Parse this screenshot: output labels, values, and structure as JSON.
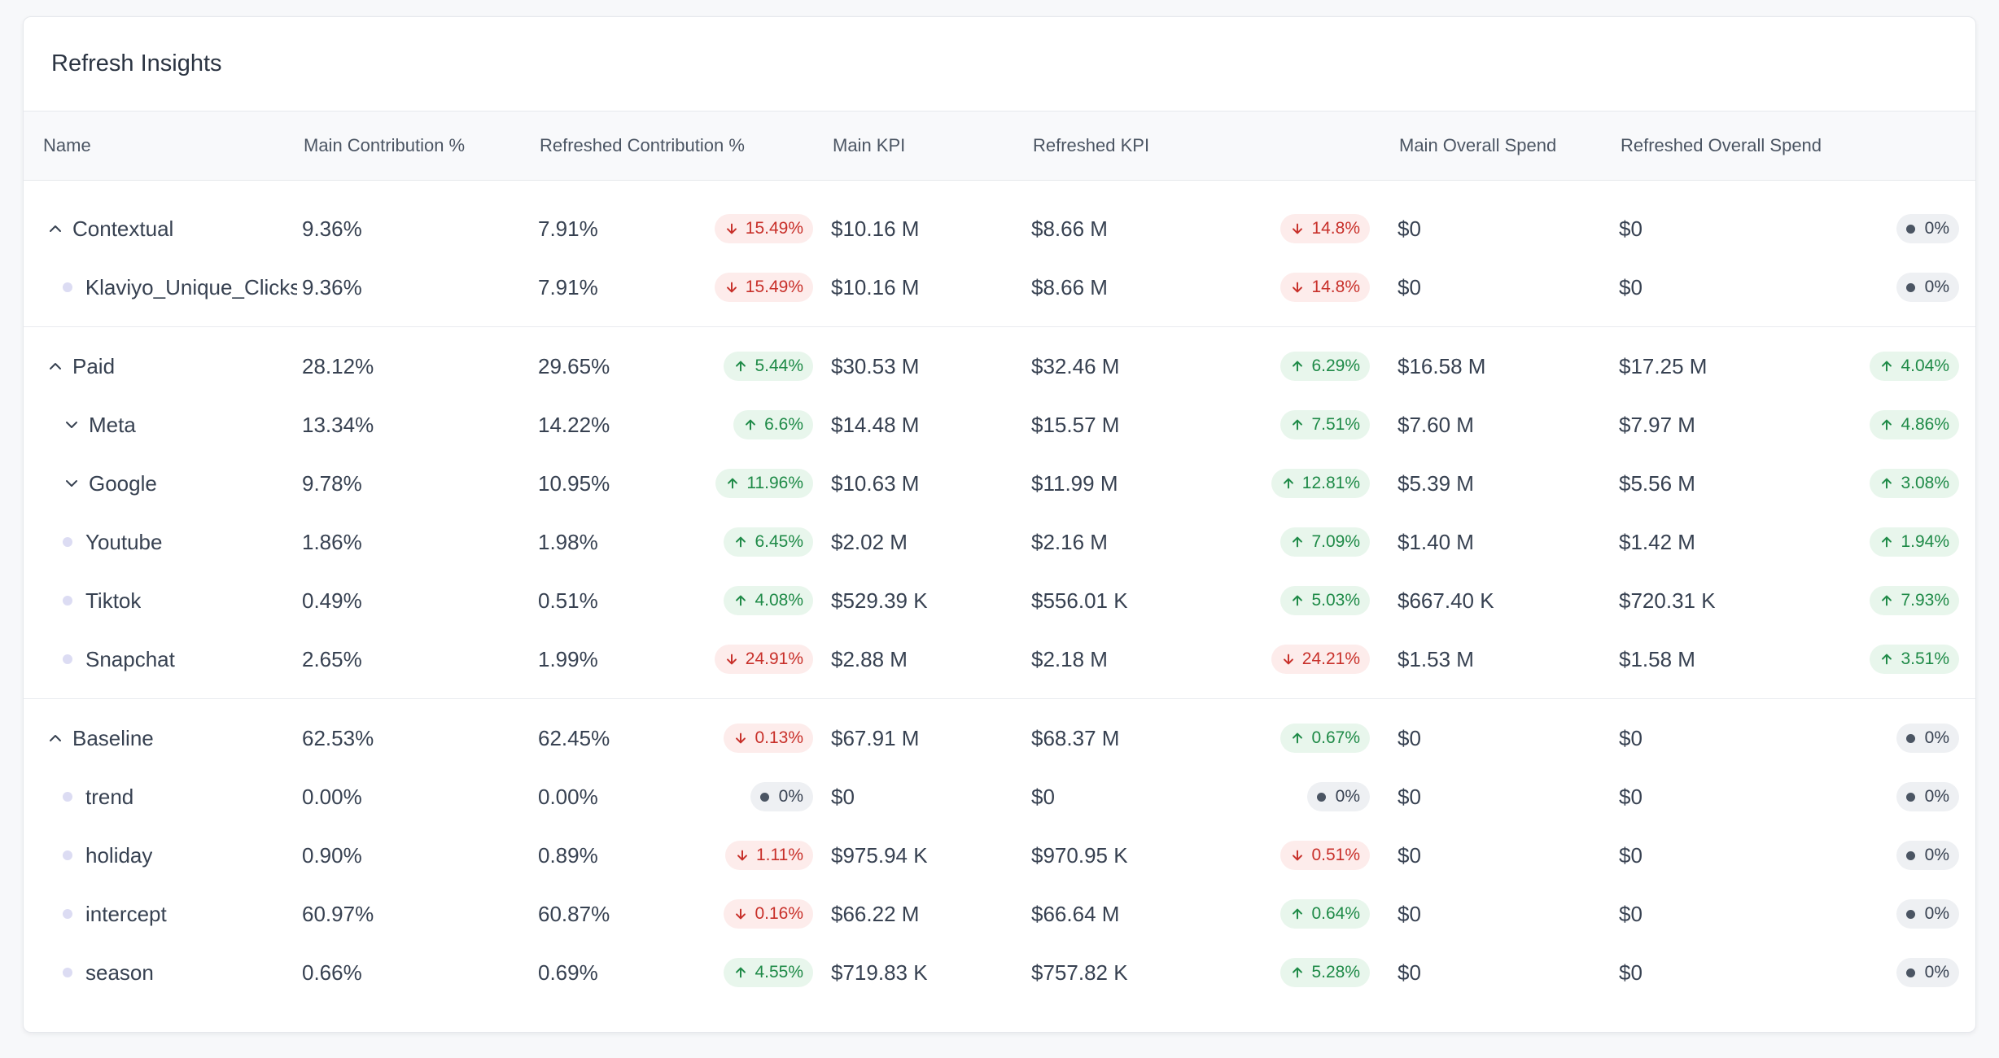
{
  "title": "Refresh Insights",
  "columns": {
    "name": "Name",
    "main_contribution": "Main Contribution %",
    "refreshed_contribution": "Refreshed Contribution %",
    "main_kpi": "Main KPI",
    "refreshed_kpi": "Refreshed KPI",
    "main_spend": "Main Overall Spend",
    "refreshed_spend": "Refreshed Overall Spend"
  },
  "rows": [
    {
      "name": "Contextual",
      "main_c": "9.36%",
      "ref_c": "7.91%",
      "c_delta": "15.49%",
      "c_dir": "down",
      "main_kpi": "$10.16 M",
      "ref_kpi": "$8.66 M",
      "kpi_delta": "14.8%",
      "kpi_dir": "down",
      "main_spend": "$0",
      "ref_spend": "$0",
      "spend_delta": "0%",
      "spend_dir": "neutral"
    },
    {
      "name": "Klaviyo_Unique_Clicks",
      "main_c": "9.36%",
      "ref_c": "7.91%",
      "c_delta": "15.49%",
      "c_dir": "down",
      "main_kpi": "$10.16 M",
      "ref_kpi": "$8.66 M",
      "kpi_delta": "14.8%",
      "kpi_dir": "down",
      "main_spend": "$0",
      "ref_spend": "$0",
      "spend_delta": "0%",
      "spend_dir": "neutral"
    },
    {
      "name": "Paid",
      "main_c": "28.12%",
      "ref_c": "29.65%",
      "c_delta": "5.44%",
      "c_dir": "up",
      "main_kpi": "$30.53 M",
      "ref_kpi": "$32.46 M",
      "kpi_delta": "6.29%",
      "kpi_dir": "up",
      "main_spend": "$16.58 M",
      "ref_spend": "$17.25 M",
      "spend_delta": "4.04%",
      "spend_dir": "up"
    },
    {
      "name": "Meta",
      "main_c": "13.34%",
      "ref_c": "14.22%",
      "c_delta": "6.6%",
      "c_dir": "up",
      "main_kpi": "$14.48 M",
      "ref_kpi": "$15.57 M",
      "kpi_delta": "7.51%",
      "kpi_dir": "up",
      "main_spend": "$7.60 M",
      "ref_spend": "$7.97 M",
      "spend_delta": "4.86%",
      "spend_dir": "up"
    },
    {
      "name": "Google",
      "main_c": "9.78%",
      "ref_c": "10.95%",
      "c_delta": "11.96%",
      "c_dir": "up",
      "main_kpi": "$10.63 M",
      "ref_kpi": "$11.99 M",
      "kpi_delta": "12.81%",
      "kpi_dir": "up",
      "main_spend": "$5.39 M",
      "ref_spend": "$5.56 M",
      "spend_delta": "3.08%",
      "spend_dir": "up"
    },
    {
      "name": "Youtube",
      "main_c": "1.86%",
      "ref_c": "1.98%",
      "c_delta": "6.45%",
      "c_dir": "up",
      "main_kpi": "$2.02 M",
      "ref_kpi": "$2.16 M",
      "kpi_delta": "7.09%",
      "kpi_dir": "up",
      "main_spend": "$1.40 M",
      "ref_spend": "$1.42 M",
      "spend_delta": "1.94%",
      "spend_dir": "up"
    },
    {
      "name": "Tiktok",
      "main_c": "0.49%",
      "ref_c": "0.51%",
      "c_delta": "4.08%",
      "c_dir": "up",
      "main_kpi": "$529.39 K",
      "ref_kpi": "$556.01 K",
      "kpi_delta": "5.03%",
      "kpi_dir": "up",
      "main_spend": "$667.40 K",
      "ref_spend": "$720.31 K",
      "spend_delta": "7.93%",
      "spend_dir": "up"
    },
    {
      "name": "Snapchat",
      "main_c": "2.65%",
      "ref_c": "1.99%",
      "c_delta": "24.91%",
      "c_dir": "down",
      "main_kpi": "$2.88 M",
      "ref_kpi": "$2.18 M",
      "kpi_delta": "24.21%",
      "kpi_dir": "down",
      "main_spend": "$1.53 M",
      "ref_spend": "$1.58 M",
      "spend_delta": "3.51%",
      "spend_dir": "up"
    },
    {
      "name": "Baseline",
      "main_c": "62.53%",
      "ref_c": "62.45%",
      "c_delta": "0.13%",
      "c_dir": "down",
      "main_kpi": "$67.91 M",
      "ref_kpi": "$68.37 M",
      "kpi_delta": "0.67%",
      "kpi_dir": "up",
      "main_spend": "$0",
      "ref_spend": "$0",
      "spend_delta": "0%",
      "spend_dir": "neutral"
    },
    {
      "name": "trend",
      "main_c": "0.00%",
      "ref_c": "0.00%",
      "c_delta": "0%",
      "c_dir": "neutral",
      "main_kpi": "$0",
      "ref_kpi": "$0",
      "kpi_delta": "0%",
      "kpi_dir": "neutral",
      "main_spend": "$0",
      "ref_spend": "$0",
      "spend_delta": "0%",
      "spend_dir": "neutral"
    },
    {
      "name": "holiday",
      "main_c": "0.90%",
      "ref_c": "0.89%",
      "c_delta": "1.11%",
      "c_dir": "down",
      "main_kpi": "$975.94 K",
      "ref_kpi": "$970.95 K",
      "kpi_delta": "0.51%",
      "kpi_dir": "down",
      "main_spend": "$0",
      "ref_spend": "$0",
      "spend_delta": "0%",
      "spend_dir": "neutral"
    },
    {
      "name": "intercept",
      "main_c": "60.97%",
      "ref_c": "60.87%",
      "c_delta": "0.16%",
      "c_dir": "down",
      "main_kpi": "$66.22 M",
      "ref_kpi": "$66.64 M",
      "kpi_delta": "0.64%",
      "kpi_dir": "up",
      "main_spend": "$0",
      "ref_spend": "$0",
      "spend_delta": "0%",
      "spend_dir": "neutral"
    },
    {
      "name": "season",
      "main_c": "0.66%",
      "ref_c": "0.69%",
      "c_delta": "4.55%",
      "c_dir": "up",
      "main_kpi": "$719.83 K",
      "ref_kpi": "$757.82 K",
      "kpi_delta": "5.28%",
      "kpi_dir": "up",
      "main_spend": "$0",
      "ref_spend": "$0",
      "spend_delta": "0%",
      "spend_dir": "neutral"
    }
  ],
  "colors": {
    "up": "#1e8a47",
    "down": "#c8302a",
    "neutral": "#374151"
  }
}
